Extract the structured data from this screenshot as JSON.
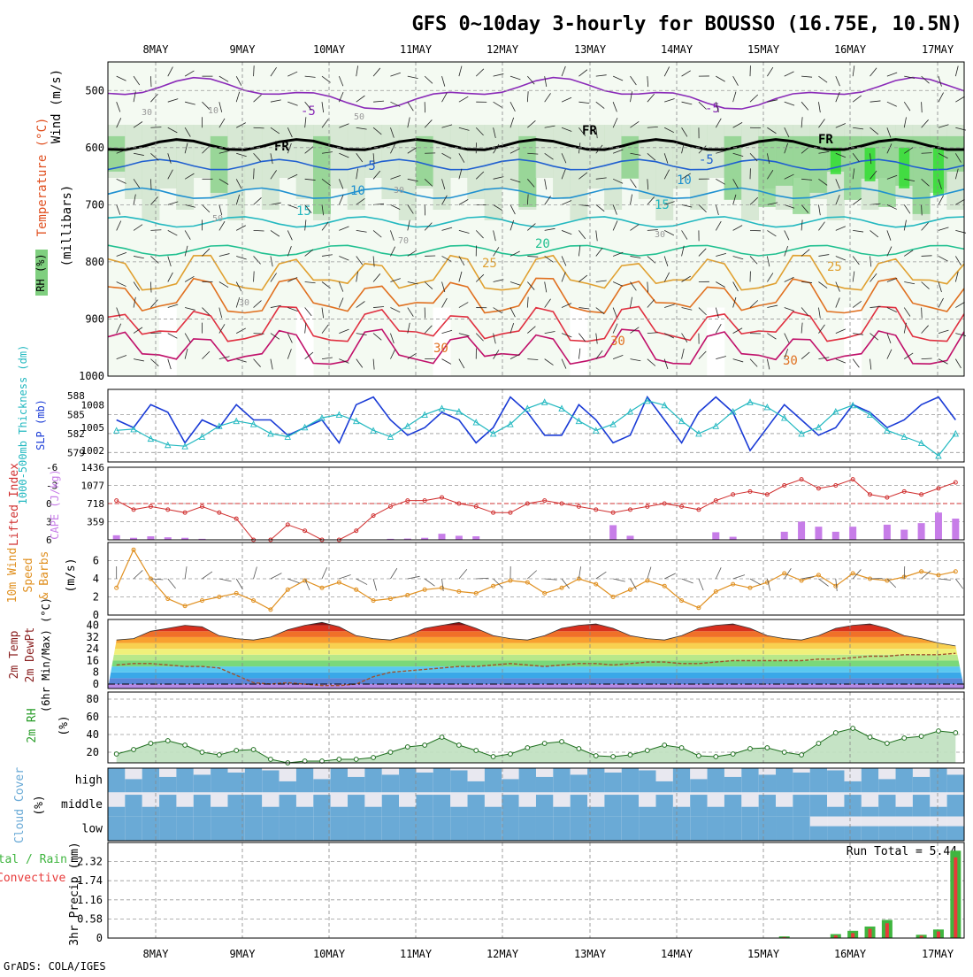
{
  "title": "GFS 0~10day 3-hourly for BOUSSO (16.75E, 10.5N)",
  "credit": "GrADS: COLA/IGES",
  "run_total_label": "Run Total = 5.44",
  "colors": {
    "temp_contour": "#e06020",
    "rh_green": "#33dd33",
    "slp": "#1a3bd6",
    "thickness": "#22b8c0",
    "lifted": "#d03030",
    "cape": "#c77de8",
    "wind": "#e09020",
    "rh2m": "#2a9d2a",
    "cloud": "#6aaad6",
    "precip_total": "#3fb53f",
    "precip_conv": "#e83a3a",
    "dewpt": "#a0522d"
  },
  "chart_data": [
    {
      "type": "contour",
      "panel": "upper-air",
      "x_dates": [
        "8MAY",
        "9MAY",
        "10MAY",
        "11MAY",
        "12MAY",
        "13MAY",
        "14MAY",
        "15MAY",
        "16MAY",
        "17MAY"
      ],
      "y_ticks": [
        "500",
        "600",
        "700",
        "800",
        "900",
        "1000"
      ],
      "ylabel_lines": [
        "Wind (m/s)",
        "Temperature (°C)",
        "(millibars)",
        "RH (%)"
      ],
      "ylim": [
        1000,
        450
      ],
      "contour_labels": [
        "-5",
        "-5",
        "FR",
        "FR",
        "FR",
        "-5",
        "-5",
        "10",
        "10",
        "15",
        "15",
        "20",
        "25",
        "25",
        "30",
        "30",
        "30",
        "30",
        "10",
        "30",
        "30",
        "50",
        "50",
        "70",
        "30"
      ]
    },
    {
      "type": "line",
      "panel": "thickness-slp",
      "ylabel_left": "1000-500mb Thickness (dm)",
      "ylabel_right": "SLP (mb)",
      "y_left_ticks": [
        "588",
        "585",
        "582",
        "579"
      ],
      "y_right_ticks": [
        "1008",
        "1005",
        "1002"
      ],
      "series": [
        {
          "name": "SLP",
          "values": [
            1006,
            1005,
            1008,
            1007,
            1003,
            1006,
            1005,
            1008,
            1006,
            1006,
            1004,
            1005,
            1006,
            1003,
            1008,
            1009,
            1006,
            1004,
            1005,
            1007,
            1006,
            1003,
            1005,
            1009,
            1007,
            1004,
            1004,
            1008,
            1006,
            1003,
            1004,
            1009,
            1006,
            1003,
            1007,
            1009,
            1007,
            1002,
            1005,
            1008,
            1006,
            1004,
            1005,
            1008,
            1007,
            1005,
            1006,
            1008,
            1009,
            1006
          ]
        },
        {
          "name": "Thickness",
          "values": [
            582.5,
            582.7,
            581.2,
            580.2,
            580.0,
            581.5,
            583.2,
            584.0,
            583.5,
            582.0,
            581.5,
            583.0,
            584.5,
            585.0,
            584.0,
            582.5,
            581.5,
            583.2,
            585.0,
            586.0,
            585.5,
            583.8,
            582.0,
            583.5,
            586.0,
            587.0,
            586.0,
            584.0,
            582.5,
            583.5,
            585.5,
            587.2,
            586.5,
            584.0,
            582.0,
            583.2,
            585.5,
            587.0,
            586.2,
            584.5,
            582.0,
            583.0,
            585.5,
            586.5,
            585.0,
            582.5,
            581.5,
            580.5,
            578.5,
            582.0
          ]
        }
      ]
    },
    {
      "type": "bar+line",
      "panel": "stability",
      "ylabel_left": "Lifted Index",
      "ylabel_right": "CAPE (J/kg)",
      "y_left_ticks": [
        "6",
        "3",
        "0",
        "-3",
        "-6"
      ],
      "y_right_ticks": [
        "1436",
        "1077",
        "718",
        "359"
      ],
      "series": [
        {
          "name": "Lifted Index",
          "values": [
            -0.5,
            1.0,
            0.5,
            1.0,
            1.5,
            0.5,
            1.5,
            2.5,
            6,
            6,
            3.5,
            4.5,
            6,
            6,
            4.5,
            2.0,
            0.5,
            -0.5,
            -0.5,
            -1.0,
            0,
            0.5,
            1.5,
            1.5,
            0,
            -0.5,
            0,
            0.5,
            1.0,
            1.5,
            1.0,
            0.5,
            0,
            0.5,
            1.0,
            -0.5,
            -1.5,
            -2.0,
            -1.5,
            -3.0,
            -4.0,
            -2.5,
            -3.0,
            -4.0,
            -1.5,
            -1.0,
            -2.0,
            -1.5,
            -2.5,
            -3.5
          ]
        },
        {
          "name": "CAPE",
          "values": [
            90,
            40,
            70,
            50,
            40,
            20,
            0,
            0,
            0,
            0,
            0,
            0,
            0,
            0,
            0,
            0,
            20,
            25,
            40,
            120,
            80,
            70,
            0,
            0,
            0,
            0,
            0,
            0,
            0,
            290,
            80,
            0,
            0,
            0,
            0,
            150,
            60,
            0,
            0,
            160,
            360,
            260,
            160,
            260,
            0,
            300,
            200,
            330,
            540,
            420
          ]
        }
      ]
    },
    {
      "type": "line",
      "panel": "10m-wind",
      "ylabel_lines": [
        "10m Wind",
        "Speed",
        "& Barbs",
        "(m/s)"
      ],
      "y_ticks": [
        "6",
        "4",
        "2",
        "0"
      ],
      "series": [
        {
          "name": "Speed",
          "values": [
            3.0,
            7.2,
            4.0,
            1.8,
            1.0,
            1.6,
            2.0,
            2.4,
            1.6,
            0.6,
            2.8,
            3.8,
            3.0,
            3.6,
            2.8,
            1.6,
            1.8,
            2.2,
            2.8,
            3.0,
            2.6,
            2.4,
            3.2,
            3.8,
            3.6,
            2.4,
            3.0,
            4.0,
            3.4,
            2.0,
            2.8,
            3.8,
            3.2,
            1.6,
            0.8,
            2.6,
            3.4,
            3.0,
            3.6,
            4.6,
            3.8,
            4.4,
            3.2,
            4.6,
            4.0,
            3.8,
            4.2,
            4.8,
            4.4,
            4.8
          ]
        }
      ]
    },
    {
      "type": "area",
      "panel": "2m-temp",
      "ylabel_lines": [
        "2m Temp",
        "2m DewPt",
        "(6hr Min/Max) (°C)"
      ],
      "y_ticks": [
        "40",
        "32",
        "24",
        "16",
        "8",
        "0"
      ],
      "series": [
        {
          "name": "2m Temp",
          "values": [
            30,
            31,
            36,
            38,
            40,
            39,
            33,
            31,
            30,
            32,
            37,
            40,
            42,
            39,
            33,
            31,
            30,
            33,
            38,
            40,
            42,
            38,
            33,
            31,
            30,
            33,
            38,
            40,
            41,
            38,
            33,
            31,
            30,
            33,
            38,
            40,
            41,
            38,
            33,
            31,
            30,
            33,
            38,
            40,
            41,
            38,
            33,
            31,
            28,
            26
          ]
        },
        {
          "name": "2m DewPt",
          "values": [
            13,
            14,
            14,
            13,
            12,
            12,
            11,
            6,
            1,
            0,
            1,
            0,
            -1,
            -1,
            0,
            5,
            8,
            9,
            10,
            11,
            12,
            12,
            13,
            14,
            13,
            12,
            13,
            14,
            14,
            13,
            14,
            15,
            15,
            14,
            14,
            15,
            16,
            16,
            16,
            16,
            16,
            17,
            17,
            18,
            19,
            19,
            20,
            20,
            20,
            21
          ]
        }
      ]
    },
    {
      "type": "area",
      "panel": "2m-rh",
      "ylabel_lines": [
        "2m RH",
        "(%)"
      ],
      "y_ticks": [
        "80",
        "60",
        "40",
        "20"
      ],
      "series": [
        {
          "name": "2m RH",
          "values": [
            18,
            23,
            30,
            33,
            28,
            20,
            17,
            22,
            23,
            12,
            8,
            10,
            10,
            12,
            12,
            14,
            20,
            26,
            28,
            37,
            28,
            22,
            15,
            18,
            25,
            30,
            32,
            24,
            16,
            15,
            17,
            22,
            28,
            25,
            16,
            15,
            18,
            24,
            25,
            20,
            17,
            30,
            42,
            47,
            37,
            30,
            36,
            38,
            44,
            42
          ]
        }
      ]
    },
    {
      "type": "heatmap",
      "panel": "cloud-cover",
      "ylabel_lines": [
        "Cloud Cover",
        "(%)"
      ],
      "rows": [
        "high",
        "middle",
        "low"
      ]
    },
    {
      "type": "bar",
      "panel": "precip",
      "ylabel_lines": [
        "Total / Rain",
        "Convective",
        "3hr Precip (mm)"
      ],
      "y_ticks": [
        "2.32",
        "1.74",
        "1.16",
        "0.58",
        "0"
      ],
      "series": [
        {
          "name": "Total",
          "values": [
            0,
            0,
            0,
            0,
            0,
            0,
            0,
            0,
            0,
            0,
            0,
            0,
            0,
            0,
            0,
            0,
            0,
            0,
            0,
            0,
            0,
            0,
            0,
            0,
            0,
            0,
            0,
            0,
            0,
            0,
            0,
            0,
            0,
            0,
            0,
            0,
            0,
            0,
            0,
            0.05,
            0,
            0,
            0.12,
            0.22,
            0.35,
            0.55,
            0,
            0.1,
            0.26,
            2.65
          ]
        },
        {
          "name": "Convective",
          "values": [
            0,
            0,
            0,
            0,
            0,
            0,
            0,
            0,
            0,
            0,
            0,
            0,
            0,
            0,
            0,
            0,
            0,
            0,
            0,
            0,
            0,
            0,
            0,
            0,
            0,
            0,
            0,
            0,
            0,
            0,
            0,
            0,
            0,
            0,
            0,
            0,
            0,
            0,
            0,
            0.03,
            0,
            0,
            0.08,
            0.15,
            0.28,
            0.45,
            0,
            0.07,
            0.2,
            2.45
          ]
        }
      ]
    }
  ]
}
